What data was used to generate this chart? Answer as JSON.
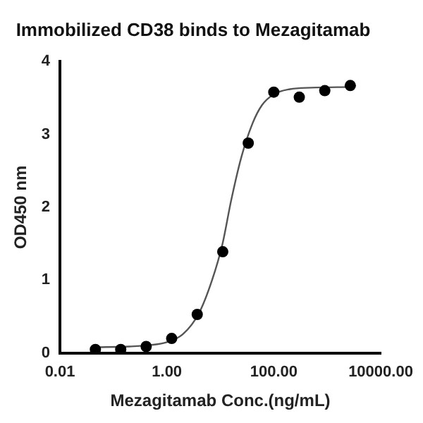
{
  "chart_data": {
    "type": "scatter",
    "title": "Immobilized CD38 binds to Mezagitamab",
    "xlabel": "Mezagitamab Conc.(ng/mL)",
    "ylabel": "OD450 nm",
    "log": "x",
    "grid": false,
    "legend": false,
    "xlim": [
      0.01,
      10000
    ],
    "xticks": [
      0.01,
      {
        "value": 1,
        "label": "1.00"
      },
      {
        "value": 100,
        "label": "100.00"
      },
      {
        "value": 10000,
        "label": "10000.00"
      }
    ],
    "ylim": [
      0,
      4
    ],
    "yticks": [
      0,
      1,
      2,
      3,
      4
    ],
    "series": [
      {
        "type": "line",
        "marker": "none",
        "line_style": "solid",
        "color": "#555555",
        "x": [
          0.046,
          0.2,
          0.5,
          1,
          2,
          4,
          7,
          11,
          16,
          25,
          40,
          60,
          100,
          200,
          500,
          2700
        ],
        "values": [
          0.08,
          0.09,
          0.11,
          0.15,
          0.26,
          0.55,
          1.0,
          1.5,
          2.1,
          2.7,
          3.15,
          3.4,
          3.55,
          3.62,
          3.64,
          3.65
        ]
      },
      {
        "marker": "circle",
        "color": "#000000",
        "x": [
          0.046,
          0.137,
          0.41,
          1.23,
          3.7,
          11.1,
          33.3,
          100,
          300,
          900,
          2700
        ],
        "values": [
          0.05,
          0.05,
          0.09,
          0.2,
          0.53,
          1.39,
          2.88,
          3.58,
          3.51,
          3.6,
          3.67
        ]
      }
    ]
  }
}
